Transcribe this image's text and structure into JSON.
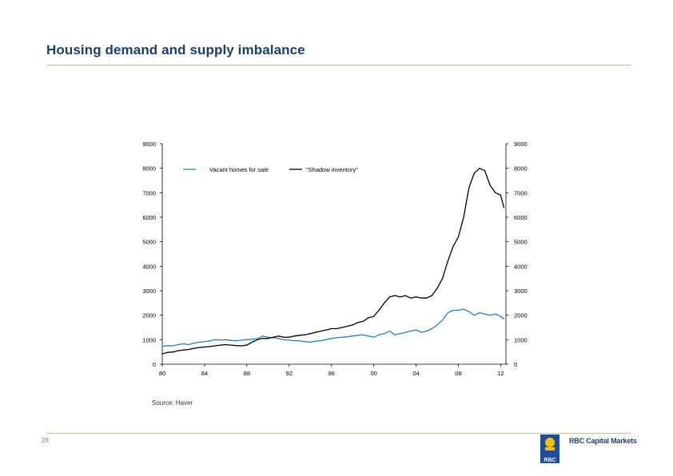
{
  "slide": {
    "title": "Housing demand and supply imbalance",
    "source": "Source: Haver",
    "page_number": "28"
  },
  "brand": {
    "logo_text": "RBC",
    "name": "RBC Capital Markets"
  },
  "colors": {
    "title": "#1c3f6e",
    "rule": "#c8bfa0",
    "vacant": "#2a7fbf",
    "shadow": "#000000",
    "logo_blue": "#1c4e9c",
    "logo_gold": "#f2c200"
  },
  "chart_data": {
    "type": "line",
    "title": "",
    "xlabel": "",
    "ylabel": "",
    "x_ticks": [
      "80",
      "84",
      "88",
      "92",
      "96",
      "00",
      "04",
      "08",
      "12"
    ],
    "x_range": [
      1980,
      2012.5
    ],
    "y_ticks": [
      0,
      1000,
      2000,
      3000,
      4000,
      5000,
      6000,
      7000,
      8000,
      9000
    ],
    "ylim": [
      0,
      9000
    ],
    "legend_position": "top",
    "series": [
      {
        "name": "Vacant homes for sale",
        "color": "#2a7fbf",
        "x": [
          1980.0,
          1980.5,
          1981.0,
          1981.5,
          1982.0,
          1982.5,
          1983.0,
          1983.5,
          1984.0,
          1984.5,
          1985.0,
          1985.5,
          1986.0,
          1986.5,
          1987.0,
          1987.5,
          1988.0,
          1988.5,
          1989.0,
          1989.5,
          1990.0,
          1990.5,
          1991.0,
          1991.5,
          1992.0,
          1992.5,
          1993.0,
          1993.5,
          1994.0,
          1994.5,
          1995.0,
          1995.5,
          1996.0,
          1996.5,
          1997.0,
          1997.5,
          1998.0,
          1998.5,
          1999.0,
          1999.5,
          2000.0,
          2000.5,
          2001.0,
          2001.5,
          2002.0,
          2002.5,
          2003.0,
          2003.5,
          2004.0,
          2004.5,
          2005.0,
          2005.5,
          2006.0,
          2006.5,
          2007.0,
          2007.5,
          2008.0,
          2008.5,
          2009.0,
          2009.5,
          2010.0,
          2010.5,
          2011.0,
          2011.5,
          2012.0,
          2012.3
        ],
        "values": [
          730,
          760,
          750,
          800,
          830,
          800,
          860,
          900,
          920,
          950,
          1000,
          980,
          1000,
          970,
          960,
          980,
          1000,
          1020,
          1040,
          1150,
          1100,
          1080,
          1050,
          1000,
          980,
          960,
          950,
          920,
          900,
          940,
          960,
          1000,
          1050,
          1080,
          1100,
          1120,
          1150,
          1180,
          1200,
          1150,
          1100,
          1200,
          1250,
          1350,
          1200,
          1250,
          1300,
          1350,
          1400,
          1300,
          1350,
          1450,
          1600,
          1800,
          2100,
          2200,
          2200,
          2250,
          2150,
          2000,
          2100,
          2050,
          2000,
          2050,
          1950,
          1850
        ]
      },
      {
        "name": "\"Shadow inventory\"",
        "color": "#000000",
        "x": [
          1980.0,
          1980.5,
          1981.0,
          1981.5,
          1982.0,
          1982.5,
          1983.0,
          1983.5,
          1984.0,
          1984.5,
          1985.0,
          1985.5,
          1986.0,
          1986.5,
          1987.0,
          1987.5,
          1988.0,
          1988.5,
          1989.0,
          1989.5,
          1990.0,
          1990.5,
          1991.0,
          1991.5,
          1992.0,
          1992.5,
          1993.0,
          1993.5,
          1994.0,
          1994.5,
          1995.0,
          1995.5,
          1996.0,
          1996.5,
          1997.0,
          1997.5,
          1998.0,
          1998.5,
          1999.0,
          1999.5,
          2000.0,
          2000.5,
          2001.0,
          2001.5,
          2002.0,
          2002.5,
          2003.0,
          2003.5,
          2004.0,
          2004.5,
          2005.0,
          2005.5,
          2006.0,
          2006.5,
          2007.0,
          2007.5,
          2008.0,
          2008.5,
          2009.0,
          2009.5,
          2010.0,
          2010.5,
          2011.0,
          2011.5,
          2012.0,
          2012.3
        ],
        "values": [
          420,
          480,
          500,
          550,
          580,
          600,
          650,
          680,
          700,
          720,
          750,
          780,
          800,
          780,
          760,
          750,
          780,
          900,
          1000,
          1050,
          1050,
          1100,
          1150,
          1100,
          1100,
          1150,
          1180,
          1200,
          1250,
          1300,
          1350,
          1400,
          1450,
          1450,
          1500,
          1550,
          1600,
          1700,
          1750,
          1900,
          1950,
          2200,
          2500,
          2750,
          2800,
          2750,
          2800,
          2700,
          2750,
          2700,
          2700,
          2800,
          3100,
          3500,
          4200,
          4800,
          5200,
          6000,
          7200,
          7800,
          8000,
          7900,
          7300,
          7000,
          6900,
          6400
        ]
      }
    ]
  }
}
